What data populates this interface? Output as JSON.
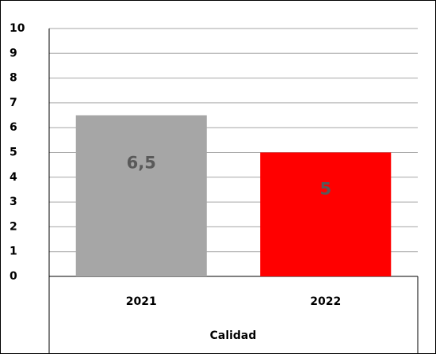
{
  "chart_data": {
    "type": "bar",
    "categories": [
      "2021",
      "2022"
    ],
    "values": [
      6.5,
      5
    ],
    "value_labels": [
      "6,5",
      "5"
    ],
    "colors": [
      "#a6a6a6",
      "#ff0000"
    ],
    "x_label": "Calidad",
    "ylim": [
      0,
      10
    ],
    "yticks": [
      0,
      1,
      2,
      3,
      4,
      5,
      6,
      7,
      8,
      9,
      10
    ],
    "grid": true
  }
}
